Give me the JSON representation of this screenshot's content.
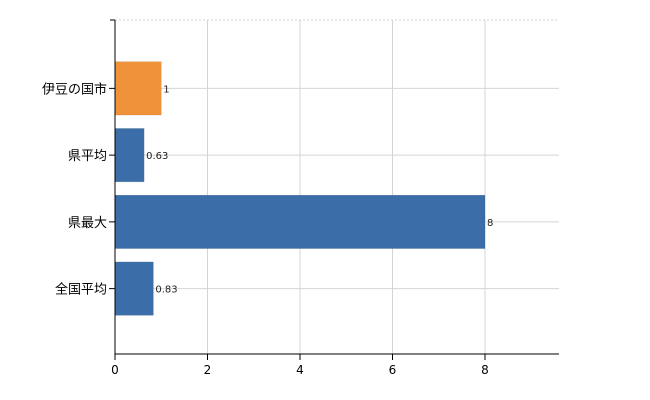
{
  "chart_data": {
    "type": "bar",
    "orientation": "horizontal",
    "categories": [
      "伊豆の国市",
      "県平均",
      "県最大",
      "全国平均"
    ],
    "values": [
      1,
      0.63,
      8,
      0.83
    ],
    "data_labels": [
      "1",
      "0.63",
      "8",
      "0.83"
    ],
    "bar_colors": [
      "#f0923a",
      "#3b6ea8",
      "#3b6ea8",
      "#3b6ea8"
    ],
    "xlim": [
      0,
      9.6
    ],
    "xticks": [
      0,
      2,
      4,
      6,
      8
    ],
    "grid": true,
    "title": "",
    "xlabel": "",
    "ylabel": ""
  }
}
